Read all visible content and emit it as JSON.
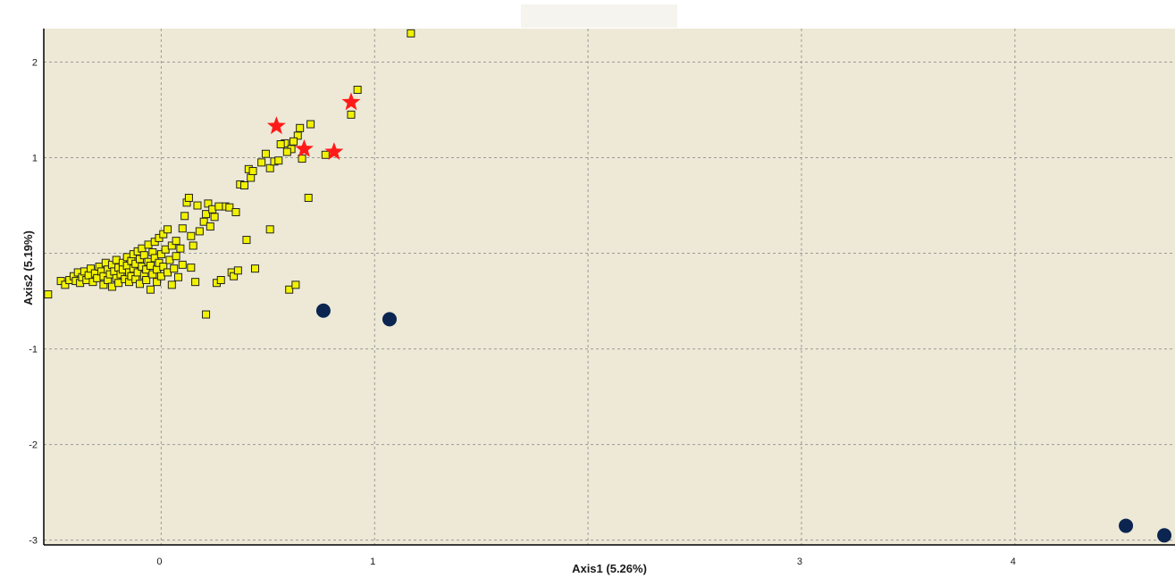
{
  "chart_data": {
    "type": "scatter",
    "xlabel": "Axis1 (5.26%)",
    "ylabel": "Axis2 (5.19%)",
    "xlim": [
      -0.55,
      4.75
    ],
    "ylim": [
      -3.05,
      2.35
    ],
    "x_ticks": [
      0,
      1,
      2,
      3,
      4
    ],
    "y_ticks": [
      -3,
      -2,
      -1,
      0,
      1,
      2
    ],
    "x_tick_labels": [
      "0",
      "1",
      "",
      "3",
      "4"
    ],
    "y_tick_labels": [
      "-3",
      "-2",
      "-1",
      "",
      "1",
      "2"
    ],
    "grid": true,
    "colors": {
      "plot_background": "#ede9d6",
      "grid": "#9a9a9a",
      "axis": "#000000",
      "square_fill": "#f2f200",
      "square_stroke": "#222222",
      "star": "#ff1a1a",
      "circle": "#0b2550"
    },
    "series": [
      {
        "marker": "square",
        "points": [
          [
            -0.53,
            -0.43
          ],
          [
            -0.47,
            -0.29
          ],
          [
            -0.45,
            -0.33
          ],
          [
            -0.43,
            -0.28
          ],
          [
            -0.41,
            -0.24
          ],
          [
            -0.4,
            -0.29
          ],
          [
            -0.39,
            -0.2
          ],
          [
            -0.38,
            -0.31
          ],
          [
            -0.37,
            -0.25
          ],
          [
            -0.36,
            -0.19
          ],
          [
            -0.35,
            -0.28
          ],
          [
            -0.34,
            -0.23
          ],
          [
            -0.33,
            -0.16
          ],
          [
            -0.32,
            -0.3
          ],
          [
            -0.31,
            -0.21
          ],
          [
            -0.3,
            -0.26
          ],
          [
            -0.29,
            -0.14
          ],
          [
            -0.28,
            -0.19
          ],
          [
            -0.27,
            -0.33
          ],
          [
            -0.27,
            -0.24
          ],
          [
            -0.26,
            -0.1
          ],
          [
            -0.25,
            -0.17
          ],
          [
            -0.25,
            -0.28
          ],
          [
            -0.24,
            -0.22
          ],
          [
            -0.23,
            -0.12
          ],
          [
            -0.23,
            -0.35
          ],
          [
            -0.22,
            -0.19
          ],
          [
            -0.21,
            -0.26
          ],
          [
            -0.21,
            -0.07
          ],
          [
            -0.2,
            -0.15
          ],
          [
            -0.2,
            -0.31
          ],
          [
            -0.19,
            -0.22
          ],
          [
            -0.18,
            -0.1
          ],
          [
            -0.18,
            -0.17
          ],
          [
            -0.17,
            -0.27
          ],
          [
            -0.16,
            -0.04
          ],
          [
            -0.16,
            -0.13
          ],
          [
            -0.15,
            -0.2
          ],
          [
            -0.15,
            -0.3
          ],
          [
            -0.14,
            -0.08
          ],
          [
            -0.14,
            -0.24
          ],
          [
            -0.13,
            -0.01
          ],
          [
            -0.13,
            -0.16
          ],
          [
            -0.12,
            -0.27
          ],
          [
            -0.12,
            -0.11
          ],
          [
            -0.11,
            0.02
          ],
          [
            -0.11,
            -0.2
          ],
          [
            -0.1,
            -0.06
          ],
          [
            -0.1,
            -0.32
          ],
          [
            -0.09,
            -0.14
          ],
          [
            -0.09,
            0.05
          ],
          [
            -0.08,
            -0.23
          ],
          [
            -0.08,
            -0.02
          ],
          [
            -0.07,
            -0.17
          ],
          [
            -0.07,
            -0.28
          ],
          [
            -0.06,
            0.09
          ],
          [
            -0.06,
            -0.09
          ],
          [
            -0.05,
            -0.38
          ],
          [
            -0.05,
            -0.13
          ],
          [
            -0.04,
            0.01
          ],
          [
            -0.04,
            -0.22
          ],
          [
            -0.03,
            0.12
          ],
          [
            -0.03,
            -0.05
          ],
          [
            -0.02,
            -0.17
          ],
          [
            -0.02,
            -0.3
          ],
          [
            -0.01,
            0.16
          ],
          [
            -0.01,
            -0.1
          ],
          [
            0.0,
            -0.01
          ],
          [
            0.0,
            -0.24
          ],
          [
            0.01,
            0.2
          ],
          [
            0.01,
            -0.14
          ],
          [
            0.02,
            0.04
          ],
          [
            0.03,
            -0.2
          ],
          [
            0.03,
            0.25
          ],
          [
            0.04,
            -0.07
          ],
          [
            0.05,
            -0.33
          ],
          [
            0.05,
            0.08
          ],
          [
            0.06,
            -0.16
          ],
          [
            0.07,
            0.13
          ],
          [
            0.07,
            -0.03
          ],
          [
            0.08,
            -0.25
          ],
          [
            0.09,
            0.05
          ],
          [
            0.1,
            -0.12
          ],
          [
            0.1,
            0.26
          ],
          [
            0.11,
            0.39
          ],
          [
            0.12,
            0.53
          ],
          [
            0.13,
            0.58
          ],
          [
            0.14,
            0.18
          ],
          [
            0.14,
            -0.15
          ],
          [
            0.15,
            0.08
          ],
          [
            0.16,
            -0.3
          ],
          [
            0.17,
            0.5
          ],
          [
            0.18,
            0.23
          ],
          [
            0.2,
            0.33
          ],
          [
            0.21,
            0.41
          ],
          [
            0.22,
            0.52
          ],
          [
            0.23,
            0.28
          ],
          [
            0.24,
            0.46
          ],
          [
            0.25,
            0.38
          ],
          [
            0.26,
            -0.31
          ],
          [
            0.28,
            -0.28
          ],
          [
            0.3,
            0.49
          ],
          [
            0.32,
            0.48
          ],
          [
            0.33,
            -0.2
          ],
          [
            0.34,
            -0.24
          ],
          [
            0.35,
            0.43
          ],
          [
            0.36,
            -0.18
          ],
          [
            0.37,
            0.72
          ],
          [
            0.39,
            0.71
          ],
          [
            0.4,
            0.14
          ],
          [
            0.41,
            0.88
          ],
          [
            0.42,
            0.79
          ],
          [
            0.43,
            0.86
          ],
          [
            0.44,
            -0.16
          ],
          [
            0.47,
            0.95
          ],
          [
            0.49,
            1.04
          ],
          [
            0.51,
            0.89
          ],
          [
            0.51,
            0.25
          ],
          [
            0.53,
            0.96
          ],
          [
            0.55,
            0.97
          ],
          [
            0.58,
            1.15
          ],
          [
            0.6,
            -0.38
          ],
          [
            0.61,
            1.09
          ],
          [
            0.63,
            -0.33
          ],
          [
            0.64,
            1.23
          ],
          [
            0.65,
            1.31
          ],
          [
            0.66,
            0.99
          ],
          [
            0.69,
            0.58
          ],
          [
            0.7,
            1.35
          ],
          [
            0.77,
            1.03
          ],
          [
            0.89,
            1.45
          ],
          [
            0.92,
            1.71
          ],
          [
            1.17,
            2.3
          ],
          [
            0.21,
            -0.64
          ],
          [
            0.56,
            1.14
          ],
          [
            0.59,
            1.06
          ],
          [
            0.62,
            1.17
          ],
          [
            0.27,
            0.49
          ]
        ]
      },
      {
        "marker": "star",
        "points": [
          [
            0.54,
            1.33
          ],
          [
            0.67,
            1.09
          ],
          [
            0.81,
            1.06
          ],
          [
            0.89,
            1.58
          ]
        ]
      },
      {
        "marker": "circle",
        "points": [
          [
            0.76,
            -0.6
          ],
          [
            1.07,
            -0.69
          ],
          [
            4.52,
            -2.85
          ],
          [
            4.7,
            -2.95
          ]
        ]
      }
    ]
  }
}
